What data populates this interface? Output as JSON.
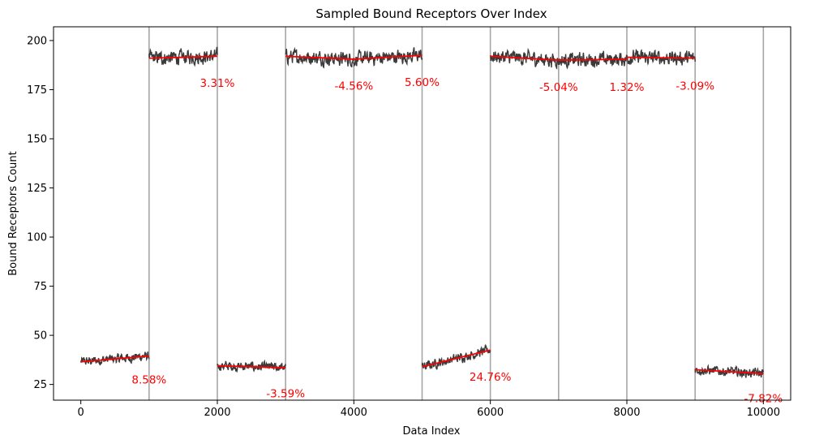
{
  "chart_data": {
    "type": "line",
    "title": "Sampled Bound Receptors Over Index",
    "xlabel": "Data Index",
    "ylabel": "Bound Receptors Count",
    "xlim": [
      -400,
      10400
    ],
    "ylim": [
      17,
      207
    ],
    "x_ticks": [
      0,
      2000,
      4000,
      6000,
      8000,
      10000
    ],
    "y_ticks": [
      25,
      50,
      75,
      100,
      125,
      150,
      175,
      200
    ],
    "boundaries": [
      1000,
      2000,
      3000,
      4000,
      5000,
      6000,
      7000,
      8000,
      9000,
      10000
    ],
    "segments": [
      {
        "start": 0,
        "end": 1000,
        "mean": 38,
        "noise": 2.0,
        "trend_start": 36.5,
        "trend_end": 39.5,
        "label": "8.58%",
        "label_y": 27.5
      },
      {
        "start": 1000,
        "end": 2000,
        "mean": 191.5,
        "noise": 3.0,
        "trend_start": 191.0,
        "trend_end": 192.0,
        "label": "3.31%",
        "label_y": 178.5
      },
      {
        "start": 2000,
        "end": 3000,
        "mean": 34,
        "noise": 2.0,
        "trend_start": 34.5,
        "trend_end": 33.5,
        "label": "-3.59%",
        "label_y": 20.5
      },
      {
        "start": 3000,
        "end": 4000,
        "mean": 191.5,
        "noise": 3.0,
        "trend_start": 192.0,
        "trend_end": 190.5,
        "label": "-4.56%",
        "label_y": 177.0
      },
      {
        "start": 4000,
        "end": 5000,
        "mean": 191.5,
        "noise": 3.0,
        "trend_start": 190.5,
        "trend_end": 192.5,
        "label": "5.60%",
        "label_y": 179.0
      },
      {
        "start": 5000,
        "end": 6000,
        "mean": 38.5,
        "noise": 2.0,
        "trend_start": 34.0,
        "trend_end": 42.5,
        "label": "24.76%",
        "label_y": 29.0
      },
      {
        "start": 6000,
        "end": 7000,
        "mean": 191.5,
        "noise": 3.0,
        "trend_start": 192.0,
        "trend_end": 190.0,
        "label": "-5.04%",
        "label_y": 176.5
      },
      {
        "start": 7000,
        "end": 8000,
        "mean": 190.5,
        "noise": 3.0,
        "trend_start": 190.0,
        "trend_end": 190.5,
        "label": "1.32%",
        "label_y": 176.5
      },
      {
        "start": 8000,
        "end": 9000,
        "mean": 191.5,
        "noise": 3.0,
        "trend_start": 191.5,
        "trend_end": 191.0,
        "label": "-3.09%",
        "label_y": 177.0
      },
      {
        "start": 9000,
        "end": 10000,
        "mean": 32,
        "noise": 2.0,
        "trend_start": 32.5,
        "trend_end": 30.5,
        "label": "-7.82%",
        "label_y": 18.0
      }
    ],
    "colors": {
      "series": "#3a3a3a",
      "trend": "#ff0000",
      "boundary": "#a6a6a6",
      "label": "#ff0000",
      "axis": "#000000"
    },
    "grid": false,
    "legend": "none"
  }
}
